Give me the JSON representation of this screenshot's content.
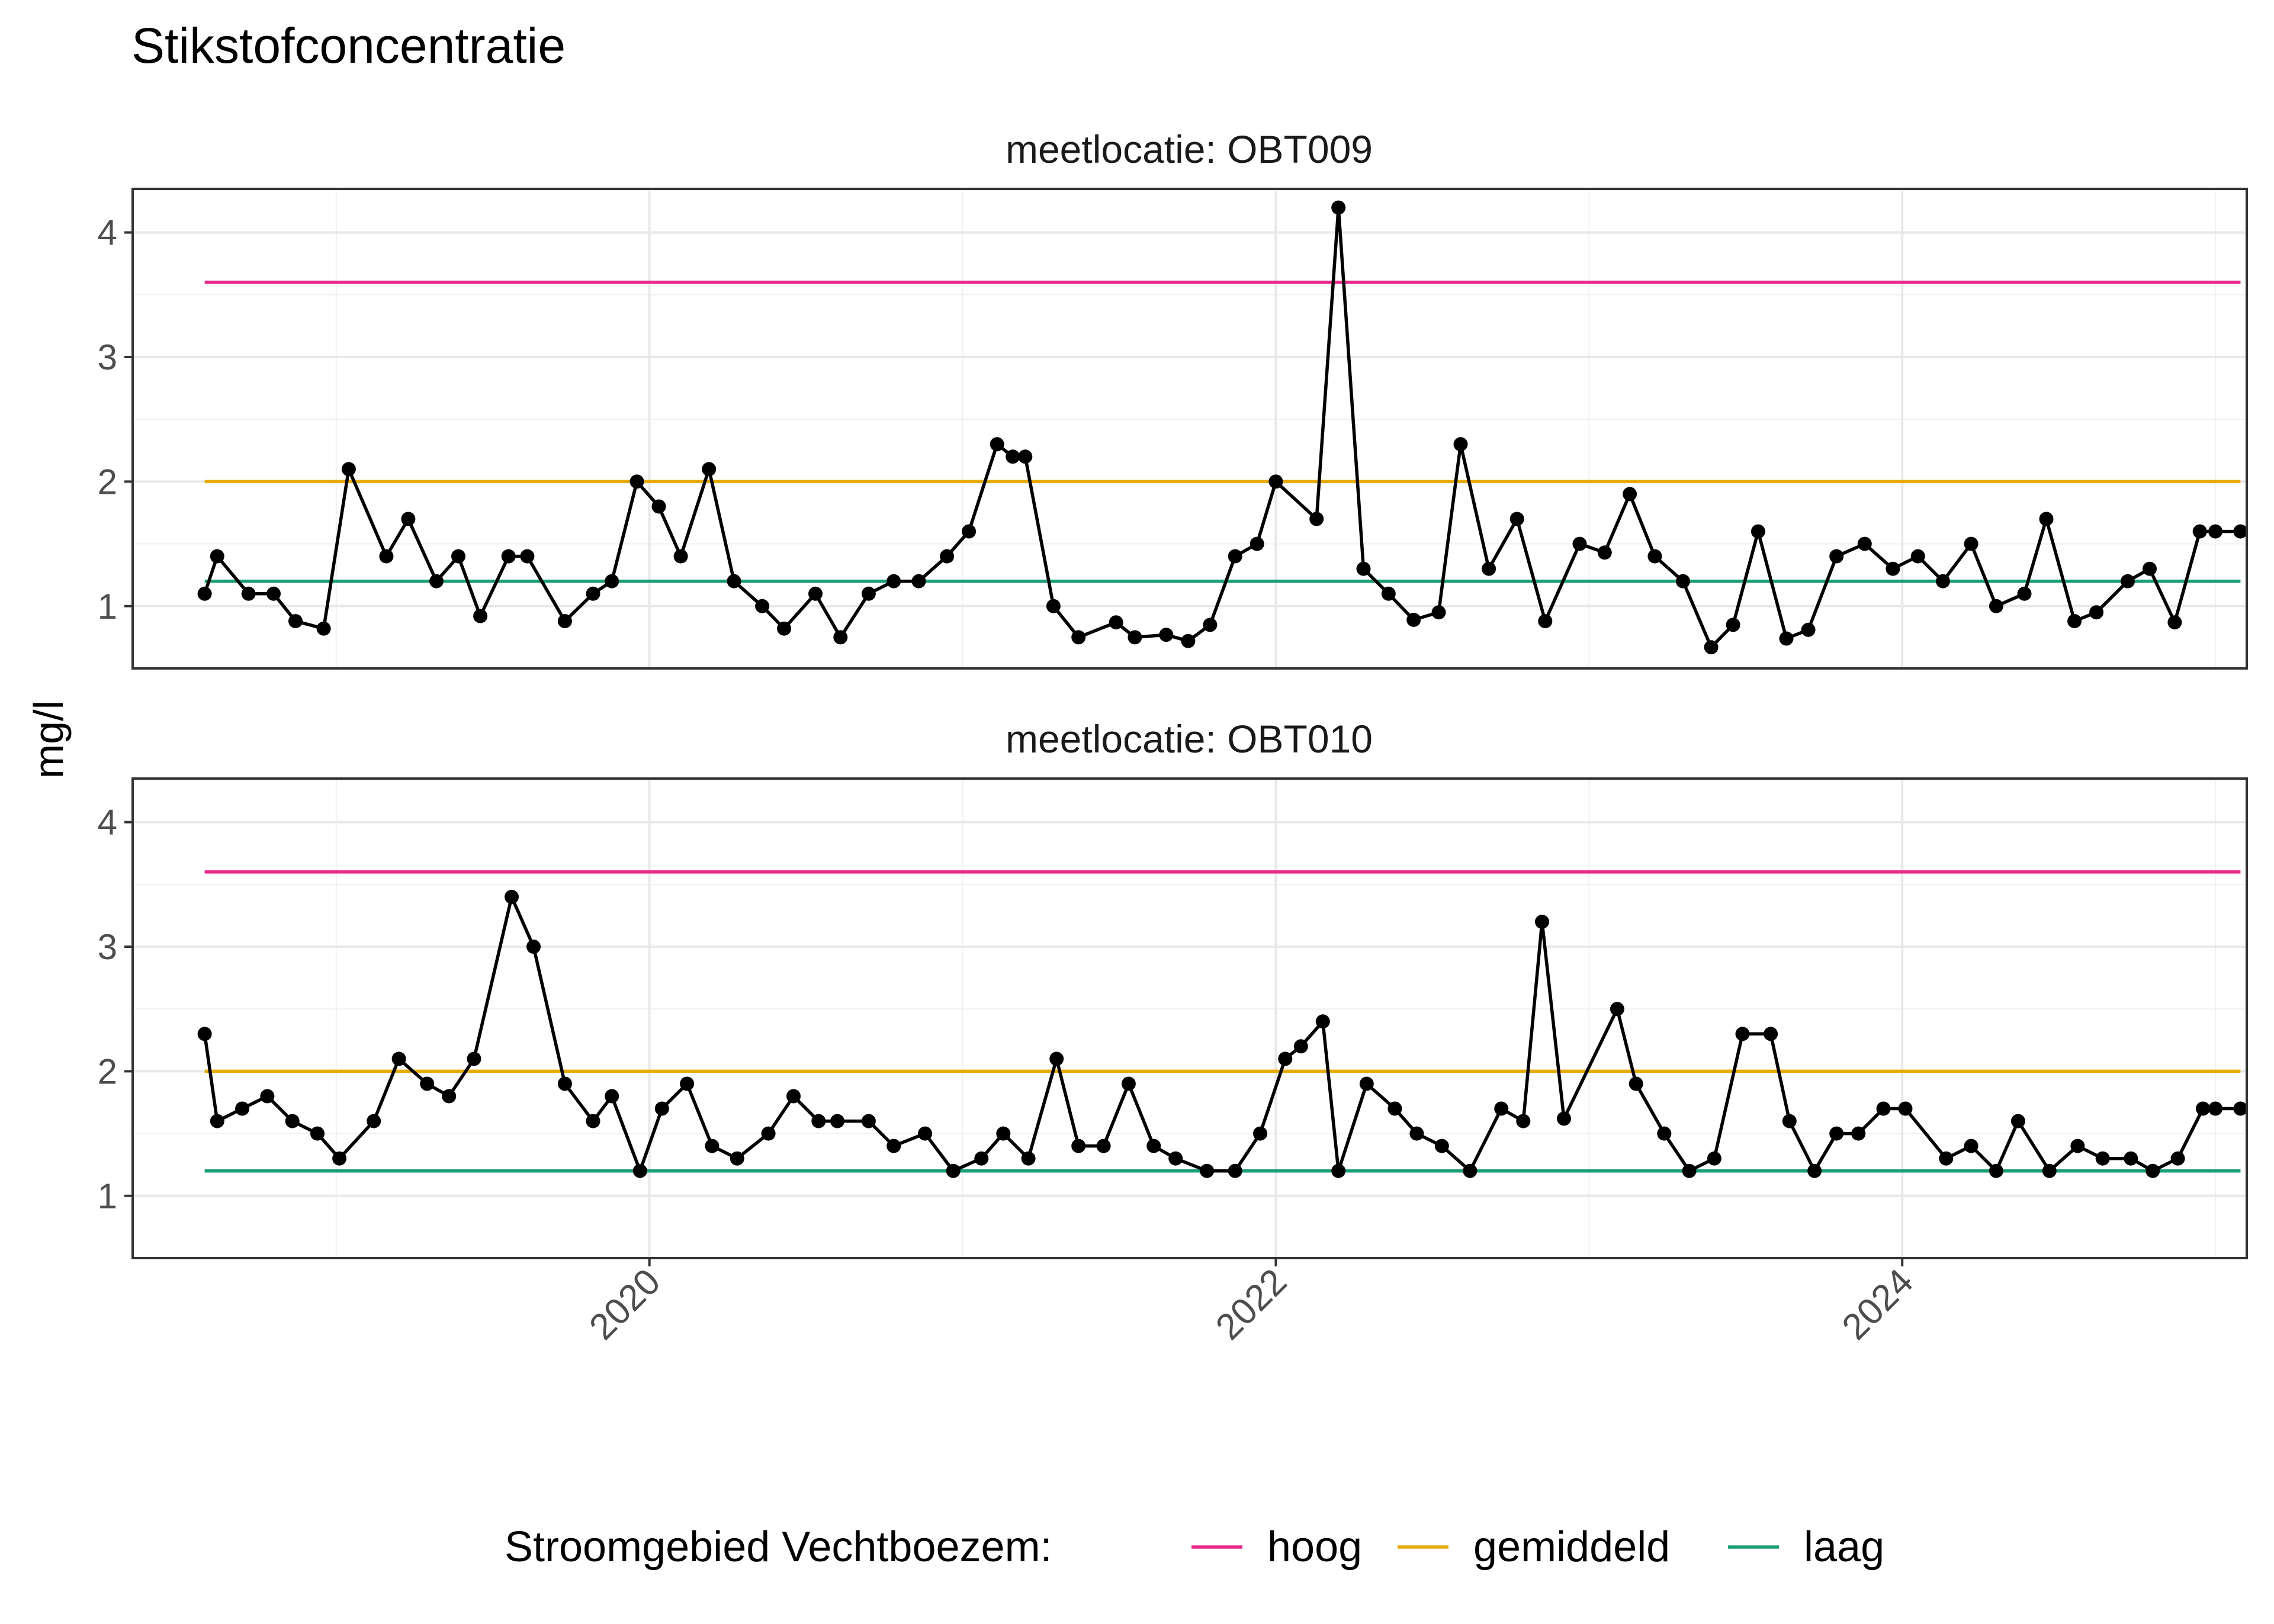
{
  "chart_data": {
    "type": "line",
    "title": "Stikstofconcentratie",
    "ylabel": "mg/l",
    "xlabel": "",
    "xlim": [
      2018.35,
      2025.1
    ],
    "ylim": [
      0.5,
      4.35
    ],
    "x_ticks": [
      2020,
      2022,
      2024
    ],
    "x_tick_labels": [
      "2020",
      "2022",
      "2024"
    ],
    "y_ticks": [
      1,
      2,
      3,
      4
    ],
    "y_tick_labels": [
      "1",
      "2",
      "3",
      "4"
    ],
    "grid": true,
    "legend": {
      "title": "Stroomgebied Vechtboezem:",
      "position": "bottom",
      "entries": [
        {
          "label": "hoog",
          "color": "#e7298a"
        },
        {
          "label": "gemiddeld",
          "color": "#e6ab02"
        },
        {
          "label": "laag",
          "color": "#1b9e77"
        }
      ]
    },
    "reference_lines": [
      {
        "name": "hoog",
        "value": 3.6,
        "x_range": [
          2018.58,
          2025.08
        ],
        "color": "#e7298a"
      },
      {
        "name": "gemiddeld",
        "value": 2.0,
        "x_range": [
          2018.58,
          2025.08
        ],
        "color": "#e6ab02"
      },
      {
        "name": "laag",
        "value": 1.2,
        "x_range": [
          2018.58,
          2025.08
        ],
        "color": "#1b9e77"
      }
    ],
    "panels": [
      {
        "strip": "meetlocatie: OBT009",
        "series": {
          "x": [
            2018.58,
            2018.62,
            2018.72,
            2018.8,
            2018.87,
            2018.96,
            2019.04,
            2019.16,
            2019.23,
            2019.32,
            2019.39,
            2019.46,
            2019.55,
            2019.61,
            2019.73,
            2019.82,
            2019.88,
            2019.96,
            2020.03,
            2020.1,
            2020.19,
            2020.27,
            2020.36,
            2020.43,
            2020.53,
            2020.61,
            2020.7,
            2020.78,
            2020.86,
            2020.95,
            2021.02,
            2021.11,
            2021.16,
            2021.2,
            2021.29,
            2021.37,
            2021.49,
            2021.55,
            2021.65,
            2021.72,
            2021.79,
            2021.87,
            2021.94,
            2022.0,
            2022.13,
            2022.2,
            2022.28,
            2022.36,
            2022.44,
            2022.52,
            2022.59,
            2022.68,
            2022.77,
            2022.86,
            2022.97,
            2023.05,
            2023.13,
            2023.21,
            2023.3,
            2023.39,
            2023.46,
            2023.54,
            2023.63,
            2023.7,
            2023.79,
            2023.88,
            2023.97,
            2024.05,
            2024.13,
            2024.22,
            2024.3,
            2024.39,
            2024.46,
            2024.55,
            2024.62,
            2024.72,
            2024.79,
            2024.87,
            2024.95,
            2025.0,
            2025.08
          ],
          "y": [
            1.1,
            1.4,
            1.1,
            1.1,
            0.88,
            0.82,
            2.1,
            1.4,
            1.7,
            1.2,
            1.4,
            0.92,
            1.4,
            1.4,
            0.88,
            1.1,
            1.2,
            2.0,
            1.8,
            1.4,
            2.1,
            1.2,
            1.0,
            0.82,
            1.1,
            0.75,
            1.1,
            1.2,
            1.2,
            1.4,
            1.6,
            2.3,
            2.2,
            2.2,
            1.0,
            0.75,
            0.87,
            0.75,
            0.77,
            0.72,
            0.85,
            1.4,
            1.5,
            2.0,
            1.7,
            4.2,
            1.3,
            1.1,
            0.89,
            0.95,
            2.3,
            1.3,
            1.7,
            0.88,
            1.5,
            1.43,
            1.9,
            1.4,
            1.2,
            0.67,
            0.85,
            1.6,
            0.74,
            0.81,
            1.4,
            1.5,
            1.3,
            1.4,
            1.2,
            1.5,
            1.0,
            1.1,
            1.7,
            0.88,
            0.95,
            1.2,
            1.3,
            0.87,
            1.6,
            1.6,
            1.6
          ]
        }
      },
      {
        "strip": "meetlocatie: OBT010",
        "series": {
          "x": [
            2018.58,
            2018.62,
            2018.7,
            2018.78,
            2018.86,
            2018.94,
            2019.01,
            2019.12,
            2019.2,
            2019.29,
            2019.36,
            2019.44,
            2019.56,
            2019.63,
            2019.73,
            2019.82,
            2019.88,
            2019.97,
            2020.04,
            2020.12,
            2020.2,
            2020.28,
            2020.38,
            2020.46,
            2020.54,
            2020.6,
            2020.7,
            2020.78,
            2020.88,
            2020.97,
            2021.06,
            2021.13,
            2021.21,
            2021.3,
            2021.37,
            2021.45,
            2021.53,
            2021.61,
            2021.68,
            2021.78,
            2021.87,
            2021.95,
            2022.03,
            2022.08,
            2022.15,
            2022.2,
            2022.29,
            2022.38,
            2022.45,
            2022.53,
            2022.62,
            2022.72,
            2022.79,
            2022.85,
            2022.92,
            2023.09,
            2023.15,
            2023.24,
            2023.32,
            2023.4,
            2023.49,
            2023.58,
            2023.64,
            2023.72,
            2023.79,
            2023.86,
            2023.94,
            2024.01,
            2024.14,
            2024.22,
            2024.3,
            2024.37,
            2024.47,
            2024.56,
            2024.64,
            2024.73,
            2024.8,
            2024.88,
            2024.96,
            2025.0,
            2025.08
          ],
          "y": [
            2.3,
            1.6,
            1.7,
            1.8,
            1.6,
            1.5,
            1.3,
            1.6,
            2.1,
            1.9,
            1.8,
            2.1,
            3.4,
            3.0,
            1.9,
            1.6,
            1.8,
            1.2,
            1.7,
            1.9,
            1.4,
            1.3,
            1.5,
            1.8,
            1.6,
            1.6,
            1.6,
            1.4,
            1.5,
            1.2,
            1.3,
            1.5,
            1.3,
            2.1,
            1.4,
            1.4,
            1.9,
            1.4,
            1.3,
            1.2,
            1.2,
            1.5,
            2.1,
            2.2,
            2.4,
            1.2,
            1.9,
            1.7,
            1.5,
            1.4,
            1.2,
            1.7,
            1.6,
            3.2,
            1.62,
            2.5,
            1.9,
            1.5,
            1.2,
            1.3,
            2.3,
            2.3,
            1.6,
            1.2,
            1.5,
            1.5,
            1.7,
            1.7,
            1.3,
            1.4,
            1.2,
            1.6,
            1.2,
            1.4,
            1.3,
            1.3,
            1.2,
            1.3,
            1.7,
            1.7,
            1.7
          ]
        }
      }
    ]
  }
}
